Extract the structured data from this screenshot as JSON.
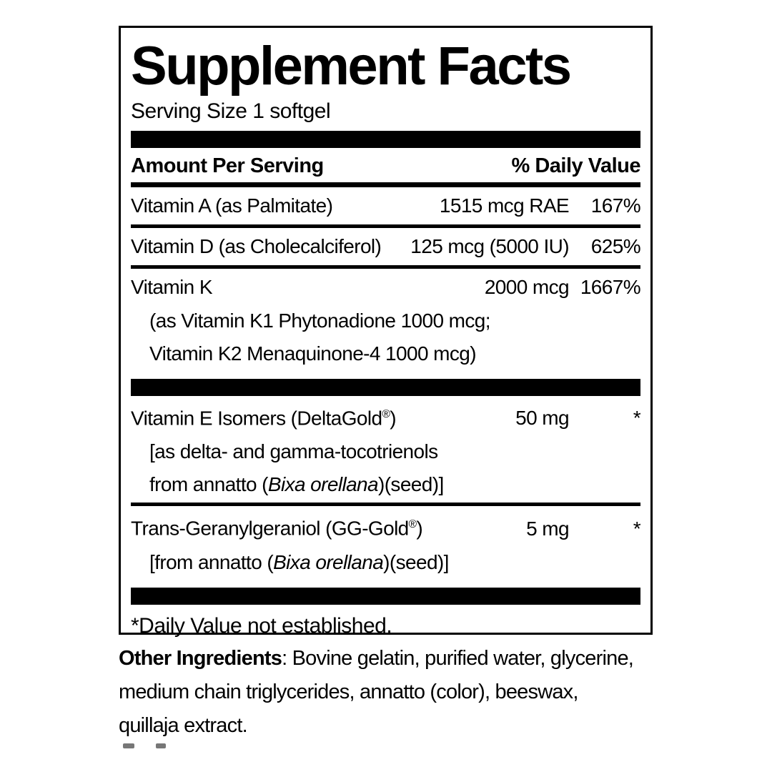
{
  "label": {
    "title": "Supplement Facts",
    "serving_size": "Serving Size 1 softgel",
    "columns": {
      "amount_header": "Amount Per Serving",
      "dv_header": "% Daily Value"
    },
    "rows": [
      {
        "type": "nutrient",
        "name_segments": [
          {
            "text": "Vitamin A (as Palmitate)"
          }
        ],
        "amount": "1515 mcg RAE",
        "dv": "167%"
      },
      {
        "type": "rule"
      },
      {
        "type": "nutrient",
        "name_segments": [
          {
            "text": "Vitamin D (as Cholecalciferol)"
          }
        ],
        "amount": "125 mcg (5000 IU)",
        "dv": "625%"
      },
      {
        "type": "rule"
      },
      {
        "type": "nutrient",
        "name_segments": [
          {
            "text": "Vitamin K"
          }
        ],
        "amount": "2000 mcg",
        "dv": "1667%"
      },
      {
        "type": "subline",
        "segments": [
          {
            "text": "(as Vitamin K1 Phytonadione 1000 mcg;"
          }
        ]
      },
      {
        "type": "subline",
        "segments": [
          {
            "text": "Vitamin K2 Menaquinone-4 1000 mcg)"
          }
        ]
      },
      {
        "type": "bar"
      },
      {
        "type": "nutrient",
        "name_segments": [
          {
            "text": "Vitamin E Isomers (DeltaGold"
          },
          {
            "text": "®",
            "sup": true
          },
          {
            "text": ")"
          }
        ],
        "amount": "50 mg",
        "dv": "*"
      },
      {
        "type": "subline",
        "segments": [
          {
            "text": "[as delta- and gamma-tocotrienols"
          }
        ]
      },
      {
        "type": "subline",
        "segments": [
          {
            "text": "from annatto ("
          },
          {
            "text": "Bixa orellana",
            "italic": true
          },
          {
            "text": ")(seed)]"
          }
        ]
      },
      {
        "type": "rule"
      },
      {
        "type": "nutrient",
        "name_segments": [
          {
            "text": "Trans-Geranylgeraniol (GG-Gold"
          },
          {
            "text": "®",
            "sup": true
          },
          {
            "text": ")"
          }
        ],
        "amount": "5 mg",
        "dv": "*"
      },
      {
        "type": "subline",
        "segments": [
          {
            "text": "[from annatto ("
          },
          {
            "text": "Bixa orellana",
            "italic": true
          },
          {
            "text": ")(seed)]"
          }
        ]
      },
      {
        "type": "bar"
      }
    ],
    "footnote": "*Daily Value not established.",
    "colors": {
      "text": "#000000",
      "bar": "#000000",
      "border": "#000000",
      "background": "#ffffff"
    }
  },
  "other_ingredients": {
    "lines": [
      [
        {
          "text": "Other Ingredients",
          "bold": true
        },
        {
          "text": ": Bovine gelatin, purified water, glycerine,"
        }
      ],
      [
        {
          "text": "medium chain triglycerides, annatto (color), beeswax,"
        }
      ],
      [
        {
          "text": "quillaja extract."
        }
      ]
    ]
  }
}
